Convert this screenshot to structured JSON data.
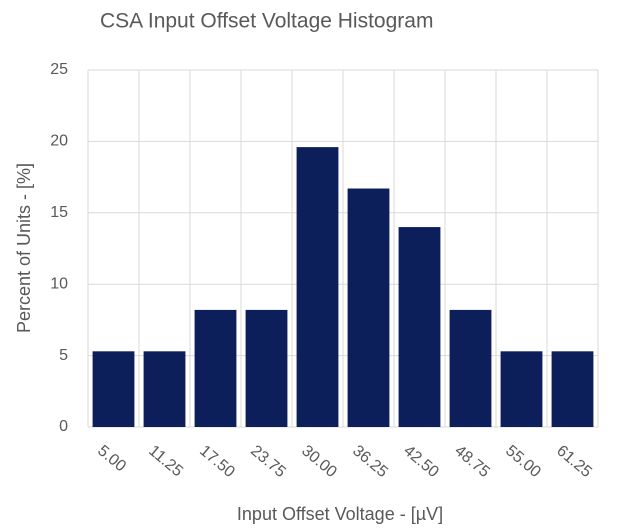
{
  "chart_data": {
    "type": "bar",
    "title": "CSA Input Offset Voltage Histogram",
    "x_label": "Input Offset Voltage - [µV]",
    "y_label": "Percent of Units - [%]",
    "categories": [
      "5.00",
      "11.25",
      "17.50",
      "23.75",
      "30.00",
      "36.25",
      "42.50",
      "48.75",
      "55.00",
      "61.25"
    ],
    "values": [
      5.3,
      5.3,
      8.2,
      8.2,
      19.6,
      16.7,
      14,
      8.2,
      5.3,
      5.3
    ],
    "color": "#0c1f5b",
    "ylim": [
      0,
      25
    ],
    "yticks": [
      0,
      5,
      10,
      15,
      20,
      25
    ],
    "grid": true
  }
}
